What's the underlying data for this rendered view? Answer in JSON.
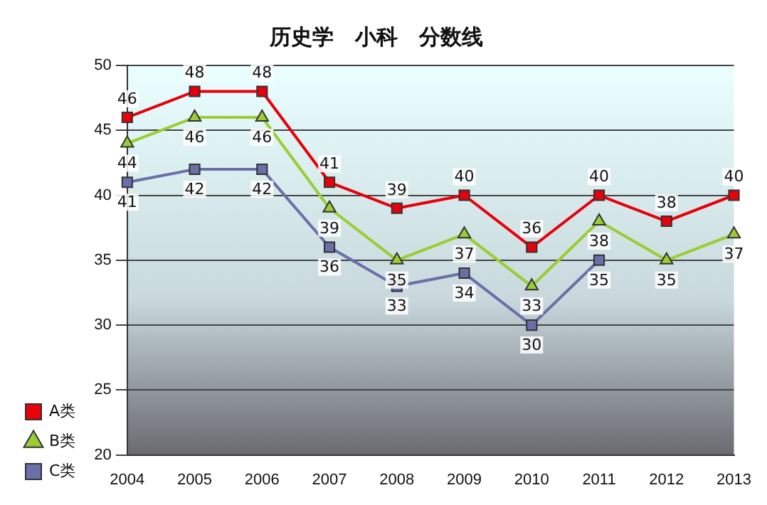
{
  "chart_data": {
    "type": "line",
    "title": "历史学　小科　分数线",
    "categories": [
      "2004",
      "2005",
      "2006",
      "2007",
      "2008",
      "2009",
      "2010",
      "2011",
      "2012",
      "2013"
    ],
    "series": [
      {
        "name": "A类",
        "color": "#e8000b",
        "marker": "square",
        "values": [
          46,
          48,
          48,
          41,
          39,
          40,
          36,
          40,
          38,
          40
        ]
      },
      {
        "name": "B类",
        "color": "#9acd32",
        "marker": "triangle",
        "values": [
          44,
          46,
          46,
          39,
          35,
          37,
          33,
          38,
          35,
          37
        ]
      },
      {
        "name": "C类",
        "color": "#6b6fa8",
        "marker": "square",
        "values": [
          41,
          42,
          42,
          36,
          33,
          34,
          30,
          35,
          null,
          null
        ]
      }
    ],
    "ylim": [
      20,
      50
    ],
    "yticks": [
      20,
      25,
      30,
      35,
      40,
      45,
      50
    ],
    "grid": "y",
    "line_style": "solid",
    "legend": "left",
    "data_labels": true
  }
}
